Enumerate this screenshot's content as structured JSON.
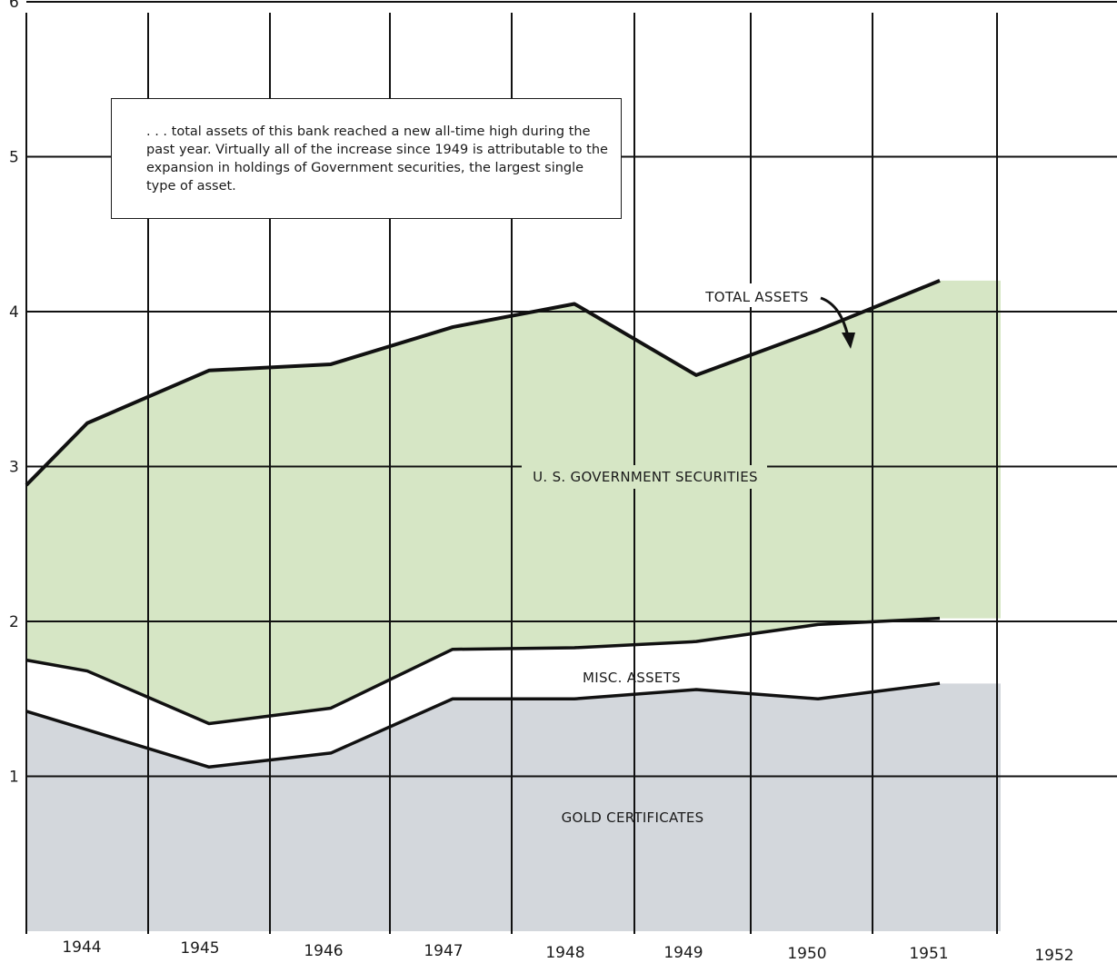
{
  "annotation": ". . . total assets of this bank reached a new all-time high during the past year. Virtually all of the increase since 1949 is attributable to the expansion in holdings of Government securities, the largest single type of asset.",
  "chart_data": {
    "type": "area",
    "x_tick_labels": [
      "1944",
      "1945",
      "1946",
      "1947",
      "1948",
      "1949",
      "1950",
      "1951",
      "1952"
    ],
    "y_tick_labels": [
      "1",
      "2",
      "3",
      "4",
      "5",
      "6"
    ],
    "ylim": [
      0,
      6
    ],
    "grid": true,
    "x": [
      1943.5,
      1944,
      1945,
      1946,
      1947,
      1948,
      1949,
      1950,
      1951,
      1951.5
    ],
    "series": [
      {
        "name": "GOLD CERTIFICATES",
        "values": [
          1.42,
          1.3,
          1.06,
          1.15,
          1.5,
          1.5,
          1.56,
          1.5,
          1.6
        ],
        "x": [
          1943.5,
          1944,
          1945,
          1946,
          1947,
          1948,
          1949,
          1950,
          1951
        ],
        "color": "#d3d7dc"
      },
      {
        "name": "MISC. ASSETS",
        "values": [
          1.75,
          1.68,
          1.34,
          1.44,
          1.82,
          1.83,
          1.87,
          1.98,
          2.02
        ],
        "x": [
          1943.5,
          1944,
          1945,
          1946,
          1947,
          1948,
          1949,
          1950,
          1951
        ],
        "color": "#ffffff"
      },
      {
        "name": "U. S. GOVERNMENT SECURITIES",
        "color": "#d6e6c5"
      },
      {
        "name": "TOTAL ASSETS",
        "values": [
          2.88,
          3.28,
          3.62,
          3.66,
          3.9,
          4.05,
          3.59,
          3.88,
          4.2
        ],
        "x": [
          1943.5,
          1944,
          1945,
          1946,
          1947,
          1948,
          1949,
          1950,
          1951
        ]
      }
    ]
  }
}
